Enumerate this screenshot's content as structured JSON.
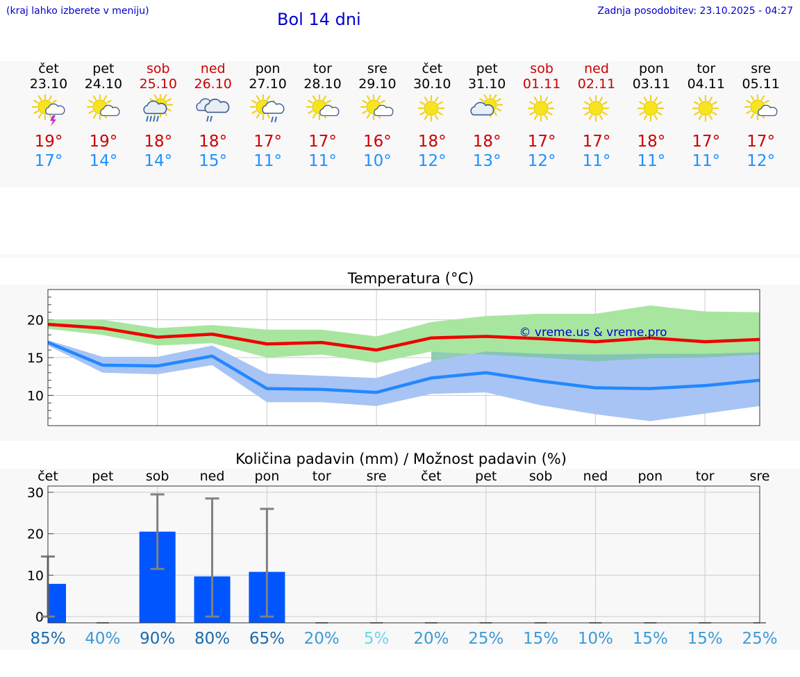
{
  "header": {
    "location_hint": "(kraj lahko izberete v meniju)",
    "title": "Bol 14 dni",
    "updated": "Zadnja posodobitev: 23.10.2025 - 04:27"
  },
  "days": [
    {
      "name": "čet",
      "date": "23.10",
      "weekend": false,
      "icon": "sun-cloud-thunder-icon",
      "max": "19°",
      "min": "17°"
    },
    {
      "name": "pet",
      "date": "24.10",
      "weekend": false,
      "icon": "sun-small-cloud-icon",
      "max": "19°",
      "min": "14°"
    },
    {
      "name": "sob",
      "date": "25.10",
      "weekend": true,
      "icon": "sun-cloud-rain-icon",
      "max": "18°",
      "min": "14°"
    },
    {
      "name": "ned",
      "date": "26.10",
      "weekend": true,
      "icon": "cloud-rain-icon",
      "max": "18°",
      "min": "15°"
    },
    {
      "name": "pon",
      "date": "27.10",
      "weekend": false,
      "icon": "sun-cloud-drizzle-icon",
      "max": "17°",
      "min": "11°"
    },
    {
      "name": "tor",
      "date": "28.10",
      "weekend": false,
      "icon": "sun-small-cloud-icon",
      "max": "17°",
      "min": "11°"
    },
    {
      "name": "sre",
      "date": "29.10",
      "weekend": false,
      "icon": "sun-small-cloud-icon",
      "max": "16°",
      "min": "10°"
    },
    {
      "name": "čet",
      "date": "30.10",
      "weekend": false,
      "icon": "sun-icon",
      "max": "18°",
      "min": "12°"
    },
    {
      "name": "pet",
      "date": "31.10",
      "weekend": false,
      "icon": "cloud-sun-icon",
      "max": "18°",
      "min": "13°"
    },
    {
      "name": "sob",
      "date": "01.11",
      "weekend": true,
      "icon": "sun-icon",
      "max": "17°",
      "min": "12°"
    },
    {
      "name": "ned",
      "date": "02.11",
      "weekend": true,
      "icon": "sun-icon",
      "max": "17°",
      "min": "11°"
    },
    {
      "name": "pon",
      "date": "03.11",
      "weekend": false,
      "icon": "sun-icon",
      "max": "18°",
      "min": "11°"
    },
    {
      "name": "tor",
      "date": "04.11",
      "weekend": false,
      "icon": "sun-icon",
      "max": "17°",
      "min": "11°"
    },
    {
      "name": "sre",
      "date": "05.11",
      "weekend": false,
      "icon": "sun-small-cloud-icon",
      "max": "17°",
      "min": "12°"
    }
  ],
  "colors": {
    "max_line": "#ee0000",
    "min_line": "#2288ff",
    "max_band": "#a8e6a0",
    "min_band": "#a8c4f4",
    "overlap_band": "#7ec4a8",
    "bar": "#0055ff",
    "error_bar": "#808080",
    "weekend_text": "#cc0000",
    "watermark": "#0000cc"
  },
  "chart_data": [
    {
      "type": "line",
      "title": "Temperatura (°C)",
      "watermark": "© vreme.us & vreme.pro",
      "x": [
        "23.10",
        "24.10",
        "25.10",
        "26.10",
        "27.10",
        "28.10",
        "29.10",
        "30.10",
        "31.10",
        "01.11",
        "02.11",
        "03.11",
        "04.11",
        "05.11"
      ],
      "ylim": [
        6,
        24
      ],
      "yticks": [
        10,
        15,
        20
      ],
      "grid": true,
      "series": [
        {
          "name": "max",
          "values": [
            19.4,
            18.9,
            17.7,
            18.1,
            16.8,
            17.0,
            16.0,
            17.6,
            17.8,
            17.5,
            17.1,
            17.6,
            17.1,
            17.4
          ],
          "band_low": [
            18.8,
            18.0,
            16.6,
            16.9,
            15.0,
            15.4,
            14.3,
            15.8,
            15.4,
            15.0,
            14.5,
            14.9,
            15.0,
            15.4
          ],
          "band_high": [
            20.0,
            20.0,
            18.9,
            19.3,
            18.7,
            18.7,
            17.8,
            19.7,
            20.5,
            20.8,
            20.8,
            21.9,
            21.1,
            21.0
          ]
        },
        {
          "name": "min",
          "values": [
            17.0,
            14.0,
            13.9,
            15.2,
            10.9,
            10.8,
            10.4,
            12.3,
            13.0,
            11.9,
            11.0,
            10.9,
            11.3,
            12.0
          ],
          "band_low": [
            16.6,
            13.0,
            12.8,
            14.0,
            9.1,
            9.1,
            8.6,
            10.2,
            10.4,
            8.7,
            7.5,
            6.6,
            7.6,
            8.6
          ],
          "band_high": [
            17.3,
            15.1,
            15.1,
            16.6,
            12.9,
            12.6,
            12.3,
            14.5,
            15.8,
            15.5,
            15.4,
            15.5,
            15.5,
            15.7
          ]
        }
      ]
    },
    {
      "type": "bar",
      "title": "Količina padavin (mm) / Možnost padavin (%)",
      "categories": [
        "čet",
        "pet",
        "sob",
        "ned",
        "pon",
        "tor",
        "sre",
        "čet",
        "pet",
        "sob",
        "ned",
        "pon",
        "tor",
        "sre"
      ],
      "values": [
        7.9,
        0,
        20.5,
        9.7,
        10.8,
        0,
        0,
        0,
        0,
        0,
        0,
        0,
        0,
        0
      ],
      "error_high": [
        14.5,
        0,
        29.5,
        28.5,
        26.0,
        0,
        0,
        0,
        0,
        0,
        0,
        0,
        0,
        0
      ],
      "error_low": [
        0,
        0,
        11.5,
        0,
        0,
        0,
        0,
        0,
        0,
        0,
        0,
        0,
        0,
        0
      ],
      "ylim": [
        -1.5,
        31.5
      ],
      "yticks": [
        0,
        10,
        20,
        30
      ],
      "probability": [
        "85%",
        "40%",
        "90%",
        "80%",
        "65%",
        "20%",
        "5%",
        "20%",
        "25%",
        "15%",
        "10%",
        "15%",
        "15%",
        "25%"
      ],
      "probability_colors": [
        "#1a6ab0",
        "#3a9ad8",
        "#1a6ab0",
        "#1a6ab0",
        "#1a6ab0",
        "#3a9ad8",
        "#6cd4ec",
        "#3a9ad8",
        "#3a9ad8",
        "#3a9ad8",
        "#3a9ad8",
        "#3a9ad8",
        "#3a9ad8",
        "#3a9ad8"
      ]
    }
  ]
}
